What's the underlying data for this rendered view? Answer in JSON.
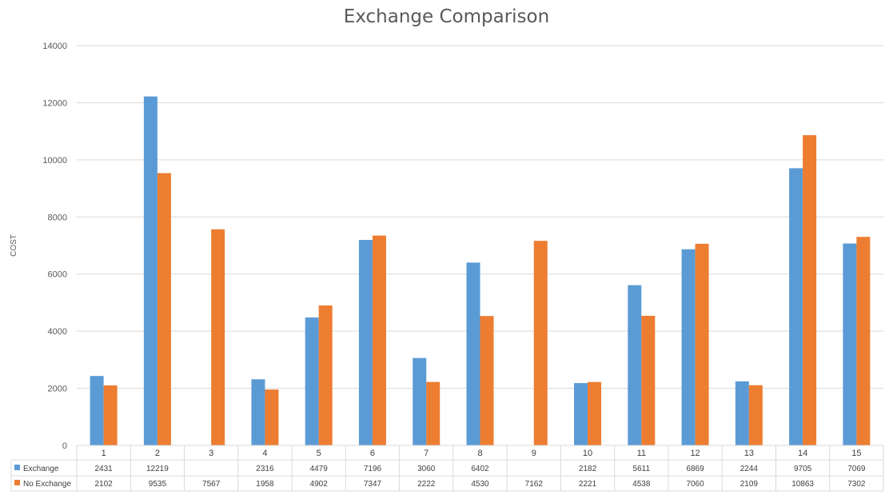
{
  "chart_data": {
    "type": "bar",
    "title": "Exchange Comparison",
    "xlabel": "",
    "ylabel": "COST",
    "ylim": [
      0,
      14000
    ],
    "yticks": [
      0,
      2000,
      4000,
      6000,
      8000,
      10000,
      12000,
      14000
    ],
    "grid": true,
    "legend": "data-table-left",
    "categories": [
      "1",
      "2",
      "3",
      "4",
      "5",
      "6",
      "7",
      "8",
      "9",
      "10",
      "11",
      "12",
      "13",
      "14",
      "15"
    ],
    "series": [
      {
        "name": "Exchange",
        "color": "#5b9bd5",
        "values": [
          2431,
          12219,
          null,
          2316,
          4479,
          7196,
          3060,
          6402,
          null,
          2182,
          5611,
          6869,
          2244,
          9705,
          7069
        ]
      },
      {
        "name": "No Exchange",
        "color": "#ed7d31",
        "values": [
          2102,
          9535,
          7567,
          1958,
          4902,
          7347,
          2222,
          4530,
          7162,
          2221,
          4538,
          7060,
          2109,
          10863,
          7302
        ]
      }
    ]
  }
}
